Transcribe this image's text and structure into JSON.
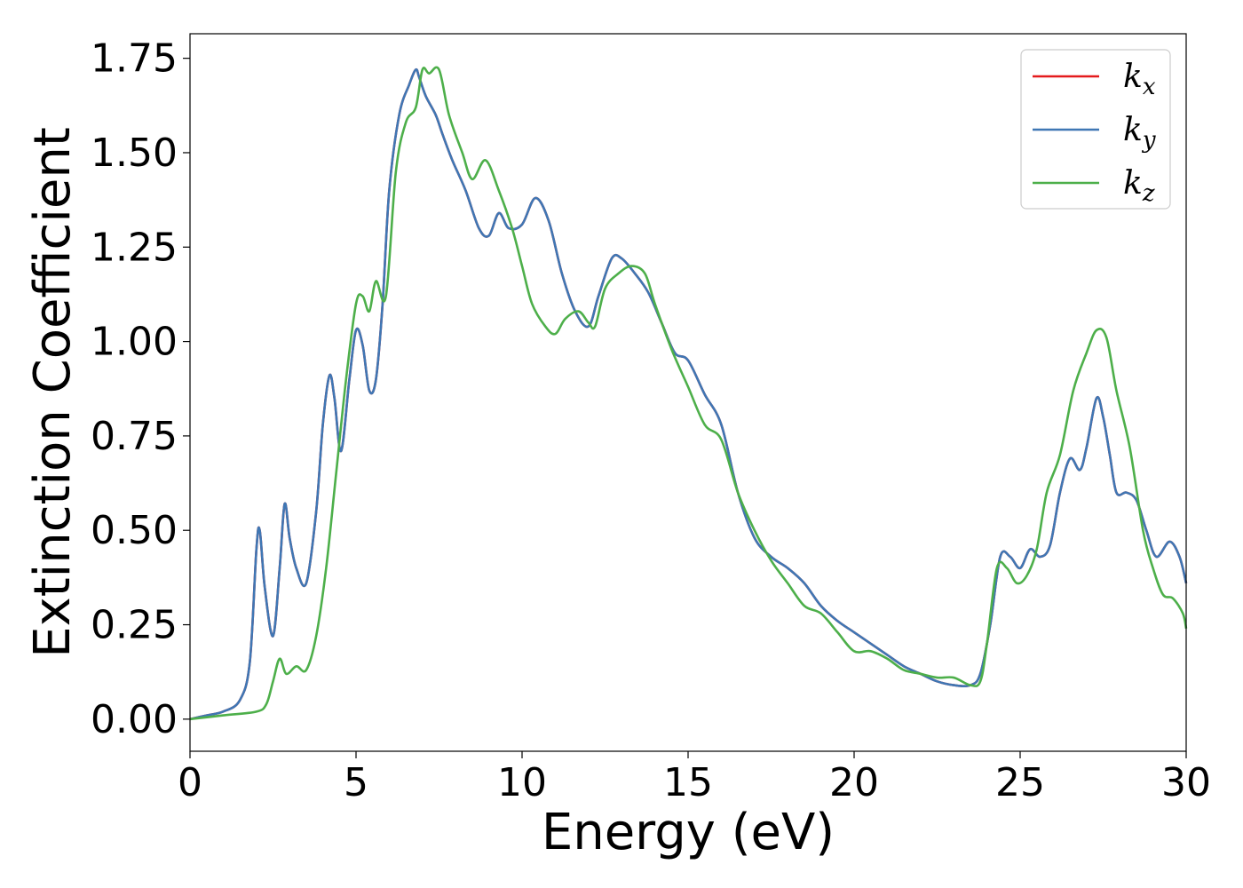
{
  "chart_data": {
    "type": "line",
    "title": "",
    "xlabel": "Energy (eV)",
    "ylabel": "Extinction Coefficient",
    "xlim": [
      0,
      30
    ],
    "ylim": [
      -0.085,
      1.815
    ],
    "xticks": [
      0,
      5,
      10,
      15,
      20,
      25,
      30
    ],
    "xtick_labels": [
      "0",
      "5",
      "10",
      "15",
      "20",
      "25",
      "30"
    ],
    "yticks": [
      0,
      0.25,
      0.5,
      0.75,
      1.0,
      1.25,
      1.5,
      1.75
    ],
    "ytick_labels": [
      "0.00",
      "0.25",
      "0.50",
      "0.75",
      "1.00",
      "1.25",
      "1.50",
      "1.75"
    ],
    "grid": false,
    "legend": {
      "position": "top-right"
    },
    "series": [
      {
        "name": "k",
        "sub": "x",
        "color": "#e41a1c",
        "x": [
          0,
          0.5,
          1.0,
          1.5,
          1.8,
          2.0,
          2.1,
          2.25,
          2.5,
          2.7,
          2.85,
          3.0,
          3.2,
          3.5,
          3.8,
          4.0,
          4.2,
          4.35,
          4.55,
          4.8,
          5.0,
          5.2,
          5.4,
          5.6,
          5.8,
          6.0,
          6.3,
          6.6,
          6.8,
          6.9,
          7.1,
          7.4,
          7.6,
          7.9,
          8.3,
          8.7,
          9.0,
          9.3,
          9.6,
          10.0,
          10.4,
          10.8,
          11.2,
          11.6,
          12.0,
          12.3,
          12.7,
          13.0,
          13.4,
          13.8,
          14.2,
          14.6,
          15.0,
          15.5,
          16.0,
          16.5,
          17.0,
          17.5,
          18.0,
          18.5,
          19.0,
          19.5,
          20.0,
          20.5,
          21.0,
          21.5,
          22.0,
          22.5,
          23.0,
          23.5,
          23.8,
          24.1,
          24.4,
          24.7,
          25.0,
          25.3,
          25.6,
          25.9,
          26.2,
          26.5,
          26.8,
          27.0,
          27.3,
          27.5,
          27.7,
          27.9,
          28.2,
          28.5,
          28.8,
          29.1,
          29.5,
          29.8,
          30.0
        ],
        "y": [
          0.0,
          0.01,
          0.02,
          0.05,
          0.15,
          0.45,
          0.5,
          0.35,
          0.22,
          0.4,
          0.57,
          0.48,
          0.4,
          0.36,
          0.55,
          0.78,
          0.91,
          0.85,
          0.71,
          0.9,
          1.03,
          0.99,
          0.87,
          0.9,
          1.1,
          1.4,
          1.6,
          1.68,
          1.72,
          1.7,
          1.65,
          1.6,
          1.55,
          1.48,
          1.4,
          1.3,
          1.28,
          1.34,
          1.3,
          1.31,
          1.38,
          1.32,
          1.18,
          1.08,
          1.04,
          1.12,
          1.22,
          1.22,
          1.18,
          1.13,
          1.05,
          0.97,
          0.95,
          0.86,
          0.78,
          0.6,
          0.48,
          0.43,
          0.4,
          0.36,
          0.3,
          0.26,
          0.23,
          0.2,
          0.17,
          0.14,
          0.12,
          0.1,
          0.09,
          0.09,
          0.12,
          0.25,
          0.43,
          0.43,
          0.4,
          0.45,
          0.43,
          0.46,
          0.6,
          0.69,
          0.66,
          0.72,
          0.85,
          0.8,
          0.7,
          0.6,
          0.6,
          0.58,
          0.5,
          0.43,
          0.47,
          0.43,
          0.36
        ]
      },
      {
        "name": "k",
        "sub": "y",
        "color": "#3f77b4",
        "x": [
          0,
          0.5,
          1.0,
          1.5,
          1.8,
          2.0,
          2.1,
          2.25,
          2.5,
          2.7,
          2.85,
          3.0,
          3.2,
          3.5,
          3.8,
          4.0,
          4.2,
          4.35,
          4.55,
          4.8,
          5.0,
          5.2,
          5.4,
          5.6,
          5.8,
          6.0,
          6.3,
          6.6,
          6.8,
          6.9,
          7.1,
          7.4,
          7.6,
          7.9,
          8.3,
          8.7,
          9.0,
          9.3,
          9.6,
          10.0,
          10.4,
          10.8,
          11.2,
          11.6,
          12.0,
          12.3,
          12.7,
          13.0,
          13.4,
          13.8,
          14.2,
          14.6,
          15.0,
          15.5,
          16.0,
          16.5,
          17.0,
          17.5,
          18.0,
          18.5,
          19.0,
          19.5,
          20.0,
          20.5,
          21.0,
          21.5,
          22.0,
          22.5,
          23.0,
          23.5,
          23.8,
          24.1,
          24.4,
          24.7,
          25.0,
          25.3,
          25.6,
          25.9,
          26.2,
          26.5,
          26.8,
          27.0,
          27.3,
          27.5,
          27.7,
          27.9,
          28.2,
          28.5,
          28.8,
          29.1,
          29.5,
          29.8,
          30.0
        ],
        "y": [
          0.0,
          0.01,
          0.02,
          0.05,
          0.15,
          0.45,
          0.5,
          0.35,
          0.22,
          0.4,
          0.57,
          0.48,
          0.4,
          0.36,
          0.55,
          0.78,
          0.91,
          0.85,
          0.71,
          0.9,
          1.03,
          0.99,
          0.87,
          0.9,
          1.1,
          1.4,
          1.6,
          1.68,
          1.72,
          1.7,
          1.65,
          1.6,
          1.55,
          1.48,
          1.4,
          1.3,
          1.28,
          1.34,
          1.3,
          1.31,
          1.38,
          1.32,
          1.18,
          1.08,
          1.04,
          1.12,
          1.22,
          1.22,
          1.18,
          1.13,
          1.05,
          0.97,
          0.95,
          0.86,
          0.78,
          0.6,
          0.48,
          0.43,
          0.4,
          0.36,
          0.3,
          0.26,
          0.23,
          0.2,
          0.17,
          0.14,
          0.12,
          0.1,
          0.09,
          0.09,
          0.12,
          0.25,
          0.43,
          0.43,
          0.4,
          0.45,
          0.43,
          0.46,
          0.6,
          0.69,
          0.66,
          0.72,
          0.85,
          0.8,
          0.7,
          0.6,
          0.6,
          0.58,
          0.5,
          0.43,
          0.47,
          0.43,
          0.36
        ]
      },
      {
        "name": "k",
        "sub": "z",
        "color": "#4daf4a",
        "x": [
          0,
          1.0,
          2.0,
          2.3,
          2.5,
          2.7,
          2.9,
          3.2,
          3.5,
          3.8,
          4.1,
          4.4,
          4.7,
          5.0,
          5.2,
          5.4,
          5.6,
          5.9,
          6.2,
          6.5,
          6.8,
          7.0,
          7.2,
          7.5,
          7.8,
          8.2,
          8.5,
          8.9,
          9.3,
          9.7,
          10.0,
          10.3,
          10.7,
          11.0,
          11.3,
          11.7,
          12.0,
          12.2,
          12.5,
          12.9,
          13.3,
          13.7,
          14.0,
          14.5,
          15.0,
          15.5,
          16.0,
          16.5,
          17.0,
          17.5,
          18.0,
          18.5,
          19.0,
          19.5,
          20.0,
          20.5,
          21.0,
          21.5,
          22.0,
          22.5,
          23.0,
          23.5,
          23.8,
          24.0,
          24.3,
          24.6,
          24.9,
          25.2,
          25.5,
          25.8,
          26.2,
          26.6,
          27.0,
          27.3,
          27.6,
          27.9,
          28.3,
          28.7,
          29.0,
          29.3,
          29.6,
          29.9,
          30.0
        ],
        "y": [
          0.0,
          0.01,
          0.02,
          0.04,
          0.1,
          0.16,
          0.12,
          0.14,
          0.13,
          0.22,
          0.4,
          0.65,
          0.9,
          1.1,
          1.12,
          1.08,
          1.16,
          1.12,
          1.45,
          1.58,
          1.62,
          1.72,
          1.71,
          1.72,
          1.6,
          1.5,
          1.43,
          1.48,
          1.4,
          1.3,
          1.2,
          1.1,
          1.04,
          1.02,
          1.06,
          1.08,
          1.05,
          1.04,
          1.14,
          1.18,
          1.2,
          1.18,
          1.1,
          0.98,
          0.88,
          0.78,
          0.74,
          0.6,
          0.5,
          0.42,
          0.36,
          0.3,
          0.28,
          0.23,
          0.18,
          0.18,
          0.16,
          0.13,
          0.12,
          0.11,
          0.11,
          0.09,
          0.1,
          0.2,
          0.4,
          0.4,
          0.36,
          0.38,
          0.45,
          0.6,
          0.7,
          0.87,
          0.97,
          1.03,
          1.01,
          0.87,
          0.72,
          0.5,
          0.4,
          0.33,
          0.32,
          0.28,
          0.24
        ]
      }
    ]
  }
}
